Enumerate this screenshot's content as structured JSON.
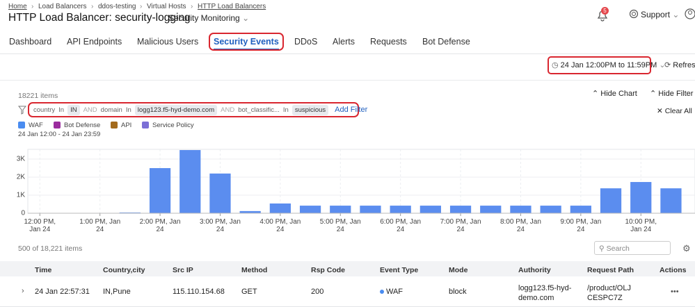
{
  "breadcrumb": [
    "Home",
    "Load Balancers",
    "ddos-testing",
    "Virtual Hosts",
    "HTTP Load Balancers"
  ],
  "header": {
    "title": "HTTP Load Balancer: security-logging",
    "view": "Security Monitoring",
    "notifications": 5,
    "support": "Support"
  },
  "tabs": [
    "Dashboard",
    "API Endpoints",
    "Malicious Users",
    "Security Events",
    "DDoS",
    "Alerts",
    "Requests",
    "Bot Defense"
  ],
  "active_tab": 3,
  "toolbar": {
    "time_range": "24 Jan 12:00PM to 11:59PM",
    "refresh": "Refresh"
  },
  "panel": {
    "items": "18221 items",
    "hide_chart": "Hide Chart",
    "hide_filter": "Hide Filter",
    "clear_all": "Clear All",
    "add_filter": "Add Filter",
    "range": "24 Jan 12:00 - 24 Jan 23:59"
  },
  "filters": [
    {
      "key": "country",
      "op": "In",
      "value": "IN"
    },
    {
      "key": "domain",
      "op": "In",
      "value": "logg123.f5-hyd-demo.com"
    },
    {
      "key": "bot_classific...",
      "op": "In",
      "value": "suspicious"
    }
  ],
  "filter_joiner": "AND",
  "legend": [
    {
      "name": "WAF",
      "color": "#4a8cf0"
    },
    {
      "name": "Bot Defense",
      "color": "#9b2c9e"
    },
    {
      "name": "API",
      "color": "#a36a1c"
    },
    {
      "name": "Service Policy",
      "color": "#7b6fd6"
    }
  ],
  "chart_data": {
    "type": "bar",
    "color": "#5b8def",
    "grid": true,
    "x": [
      12,
      12.5,
      13,
      13.5,
      14,
      14.5,
      15,
      15.5,
      16,
      16.5,
      17,
      17.5,
      18,
      18.5,
      19,
      19.5,
      20,
      20.5,
      21,
      21.5,
      22,
      22.5
    ],
    "values": [
      10,
      10,
      10,
      40,
      2500,
      3500,
      2200,
      120,
      540,
      420,
      420,
      420,
      420,
      420,
      420,
      420,
      420,
      420,
      420,
      1380,
      1730,
      1380
    ],
    "xlim": [
      11.8,
      22.9
    ],
    "ylim": [
      0,
      3540
    ],
    "xticks": [
      {
        "value": 12,
        "label": "12:00 PM, Jan 24"
      },
      {
        "value": 13,
        "label": "1:00 PM, Jan 24"
      },
      {
        "value": 14,
        "label": "2:00 PM, Jan 24"
      },
      {
        "value": 15,
        "label": "3:00 PM, Jan 24"
      },
      {
        "value": 16,
        "label": "4:00 PM, Jan 24"
      },
      {
        "value": 17,
        "label": "5:00 PM, Jan 24"
      },
      {
        "value": 18,
        "label": "6:00 PM, Jan 24"
      },
      {
        "value": 19,
        "label": "7:00 PM, Jan 24"
      },
      {
        "value": 20,
        "label": "8:00 PM, Jan 24"
      },
      {
        "value": 21,
        "label": "9:00 PM, Jan 24"
      },
      {
        "value": 22,
        "label": "10:00 PM, Jan 24"
      }
    ],
    "yticks": [
      0,
      {
        "value": 1000,
        "label": "1K"
      },
      {
        "value": 2000,
        "label": "2K"
      },
      {
        "value": 3000,
        "label": "3K"
      }
    ]
  },
  "table": {
    "count": "500 of 18,221 items",
    "search": "Search",
    "columns": [
      "Time",
      "Country,city",
      "Src IP",
      "Method",
      "Rsp Code",
      "Event Type",
      "Mode",
      "Authority",
      "Request Path",
      "Actions"
    ],
    "rows": [
      [
        "24 Jan 22:57:31",
        "IN,Pune",
        "115.110.154.68",
        "GET",
        "200",
        "WAF",
        "block",
        "logg123.f5-hyd-demo.com",
        "/product/OLJCESPC7Z",
        "•••"
      ]
    ]
  }
}
